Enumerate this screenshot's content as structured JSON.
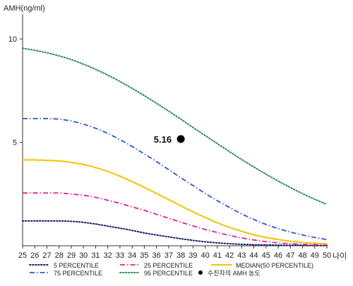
{
  "chart_data": {
    "type": "line",
    "ylabel": "AMH(ng/ml)",
    "xlabel": "나이",
    "x": [
      25,
      26,
      27,
      28,
      29,
      30,
      31,
      32,
      33,
      34,
      35,
      36,
      37,
      38,
      39,
      40,
      41,
      42,
      43,
      44,
      45,
      46,
      47,
      48,
      49,
      50
    ],
    "x_tick_labels": [
      "25",
      "26",
      "27",
      "28",
      "29",
      "30",
      "31",
      "32",
      "33",
      "34",
      "35",
      "36",
      "37",
      "38",
      "39",
      "40",
      "41",
      "42",
      "43",
      "44",
      "45",
      "46",
      "47",
      "48",
      "49",
      "50"
    ],
    "y_ticks": [
      5,
      10
    ],
    "y_tick_labels": [
      "5",
      "10"
    ],
    "xlim": [
      25,
      50
    ],
    "ylim": [
      0,
      11.2
    ],
    "grid": false,
    "legend_position": "bottom",
    "series": [
      {
        "key": "p5",
        "name": "5 PERCENTILE",
        "color": "#1a1a6e",
        "style": "dotted",
        "values": [
          1.2,
          1.2,
          1.2,
          1.2,
          1.18,
          1.13,
          1.05,
          0.95,
          0.85,
          0.74,
          0.62,
          0.52,
          0.43,
          0.34,
          0.26,
          0.19,
          0.14,
          0.1,
          0.07,
          0.05,
          0.04,
          0.03,
          0.02,
          0.02,
          0.01,
          0.01
        ]
      },
      {
        "key": "p25",
        "name": "25 PERCENTILE",
        "color": "#e0228a",
        "style": "dashdot",
        "values": [
          2.55,
          2.55,
          2.55,
          2.55,
          2.5,
          2.44,
          2.34,
          2.2,
          2.05,
          1.88,
          1.71,
          1.52,
          1.33,
          1.14,
          0.96,
          0.79,
          0.64,
          0.5,
          0.38,
          0.28,
          0.2,
          0.14,
          0.1,
          0.07,
          0.05,
          0.04
        ]
      },
      {
        "key": "median",
        "name": "MEDIAN(50 PERCENTILE)",
        "color": "#f2c400",
        "style": "solid",
        "values": [
          4.15,
          4.15,
          4.13,
          4.1,
          4.03,
          3.93,
          3.78,
          3.59,
          3.36,
          3.1,
          2.82,
          2.53,
          2.23,
          1.93,
          1.64,
          1.37,
          1.11,
          0.89,
          0.7,
          0.53,
          0.4,
          0.3,
          0.22,
          0.16,
          0.12,
          0.09
        ]
      },
      {
        "key": "p75",
        "name": "75 PERCENTILE",
        "color": "#3355cc",
        "style": "dashdot",
        "values": [
          6.15,
          6.15,
          6.15,
          6.12,
          6.03,
          5.88,
          5.68,
          5.43,
          5.13,
          4.8,
          4.44,
          4.07,
          3.68,
          3.29,
          2.91,
          2.53,
          2.18,
          1.85,
          1.54,
          1.27,
          1.03,
          0.83,
          0.66,
          0.52,
          0.4,
          0.3
        ]
      },
      {
        "key": "p95",
        "name": "95 PERCENTILE",
        "color": "#2e8b57",
        "style": "dotted",
        "values": [
          9.55,
          9.45,
          9.33,
          9.18,
          9.0,
          8.78,
          8.53,
          8.25,
          7.94,
          7.61,
          7.26,
          6.89,
          6.51,
          6.12,
          5.72,
          5.33,
          4.94,
          4.55,
          4.17,
          3.81,
          3.46,
          3.13,
          2.82,
          2.52,
          2.25,
          2.0
        ]
      }
    ],
    "point": {
      "name": "수진자의 AMH 농도",
      "x": 38,
      "y": 5.16,
      "label": "5.16",
      "color": "#000000"
    },
    "legend": {
      "rows": [
        [
          "p5",
          "p25",
          "median"
        ],
        [
          "p75",
          "p95",
          "point"
        ]
      ]
    }
  }
}
